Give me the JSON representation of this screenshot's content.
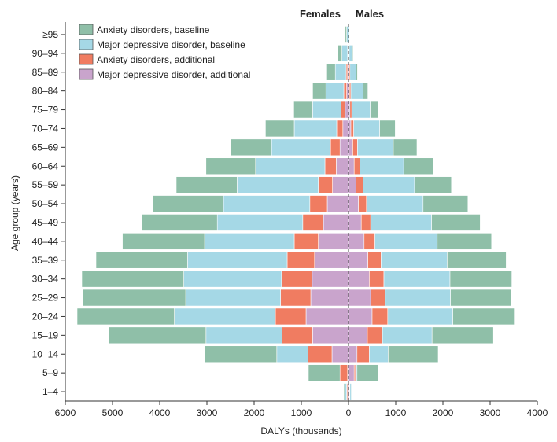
{
  "chart_data": {
    "type": "bar",
    "orientation": "horizontal-population-pyramid",
    "stacked": true,
    "title": "",
    "xlabel": "DALYs (thousands)",
    "ylabel": "Age group (years)",
    "side_labels": {
      "left": "Females",
      "right": "Males"
    },
    "xlim": [
      -6000,
      4000
    ],
    "x_ticks": [
      -6000,
      -5000,
      -4000,
      -3000,
      -2000,
      -1000,
      0,
      1000,
      2000,
      3000,
      4000
    ],
    "x_tick_labels": [
      "6000",
      "5000",
      "4000",
      "3000",
      "2000",
      "1000",
      "0",
      "1000",
      "2000",
      "3000",
      "4000"
    ],
    "legend_position": "top-left",
    "categories": [
      "1–4",
      "5–9",
      "10–14",
      "15–19",
      "20–24",
      "25–29",
      "30–34",
      "35–39",
      "40–44",
      "45–49",
      "50–54",
      "55–59",
      "60–64",
      "65–69",
      "70–74",
      "75–79",
      "80–84",
      "85–89",
      "90–94",
      "≥95"
    ],
    "series": [
      {
        "name": "Anxiety disorders, baseline",
        "color": "#8fbfa8",
        "females": [
          20,
          670,
          1530,
          2060,
          2060,
          2180,
          2160,
          1940,
          1740,
          1600,
          1500,
          1290,
          1050,
          870,
          610,
          400,
          280,
          180,
          90,
          30
        ],
        "males": [
          20,
          450,
          1060,
          1300,
          1300,
          1280,
          1310,
          1250,
          1150,
          1030,
          950,
          780,
          620,
          500,
          330,
          170,
          100,
          30,
          20,
          10
        ]
      },
      {
        "name": "Major depressive disorder, baseline",
        "color": "#a5d8e6",
        "females": [
          40,
          0,
          660,
          1610,
          2140,
          2010,
          2070,
          2110,
          1900,
          1810,
          1830,
          1720,
          1470,
          1250,
          900,
          600,
          380,
          230,
          120,
          40
        ],
        "males": [
          30,
          30,
          400,
          1050,
          1380,
          1380,
          1400,
          1400,
          1320,
          1290,
          1200,
          1090,
          930,
          760,
          550,
          390,
          260,
          130,
          60,
          20
        ]
      },
      {
        "name": "Anxiety disorders, additional",
        "color": "#f07c61",
        "females": [
          20,
          160,
          510,
          650,
          650,
          640,
          650,
          580,
          510,
          440,
          370,
          300,
          240,
          200,
          130,
          90,
          60,
          30,
          10,
          0
        ],
        "males": [
          10,
          30,
          260,
          320,
          330,
          310,
          310,
          280,
          230,
          200,
          170,
          150,
          120,
          100,
          60,
          40,
          30,
          20,
          10,
          0
        ]
      },
      {
        "name": "Major depressive disorder, additional",
        "color": "#c9a4cc",
        "females": [
          20,
          20,
          350,
          760,
          900,
          800,
          770,
          720,
          640,
          530,
          450,
          340,
          260,
          180,
          120,
          70,
          40,
          20,
          10,
          0
        ],
        "males": [
          20,
          120,
          180,
          400,
          500,
          470,
          440,
          410,
          330,
          270,
          210,
          160,
          120,
          90,
          50,
          30,
          20,
          10,
          5,
          0
        ]
      }
    ]
  }
}
